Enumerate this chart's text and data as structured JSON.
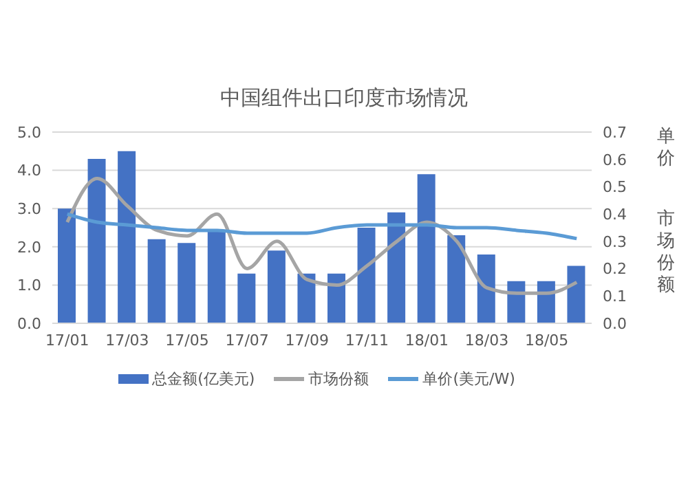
{
  "chart_data": {
    "type": "bar",
    "title": "中国组件出口印度市场情况",
    "y2label": "单价",
    "annotations": [
      "市场份额"
    ],
    "categories": [
      "17/01",
      null,
      "17/03",
      null,
      "17/05",
      null,
      "17/07",
      null,
      "17/09",
      null,
      "17/11",
      null,
      "18/01",
      null,
      "18/03",
      null,
      "18/05",
      null
    ],
    "series": [
      {
        "name": "总金额(亿美元)",
        "color": "#4472c4",
        "values": [
          3.0,
          4.3,
          4.5,
          2.2,
          2.1,
          2.4,
          1.3,
          1.9,
          1.3,
          1.3,
          2.5,
          2.9,
          3.9,
          2.3,
          1.8,
          1.1,
          1.1,
          1.5
        ]
      },
      {
        "name": "市场份额",
        "type": "line",
        "axis": "y2",
        "color": "#a5a5a5",
        "values": [
          0.37,
          0.53,
          0.43,
          0.34,
          0.32,
          0.4,
          0.2,
          0.3,
          0.16,
          0.14,
          0.21,
          0.3,
          0.37,
          0.3,
          0.13,
          0.11,
          0.11,
          0.15
        ]
      },
      {
        "name": "单价(美元/W)",
        "type": "line",
        "axis": "y2",
        "color": "#5b9bd5",
        "values": [
          0.4,
          0.37,
          0.36,
          0.35,
          0.34,
          0.34,
          0.33,
          0.33,
          0.33,
          0.35,
          0.36,
          0.36,
          0.36,
          0.35,
          0.35,
          0.34,
          0.33,
          0.31
        ]
      }
    ],
    "ylim": [
      0,
      5
    ],
    "yticks": [
      {
        "value": 0,
        "label": "0.0"
      },
      {
        "value": 1,
        "label": "1.0"
      },
      {
        "value": 2,
        "label": "2.0"
      },
      {
        "value": 3,
        "label": "3.0"
      },
      {
        "value": 4,
        "label": "4.0"
      },
      {
        "value": 5,
        "label": "5.0"
      }
    ],
    "y2lim": [
      0,
      0.7
    ],
    "y2ticks": [
      {
        "value": 0,
        "label": "0.0"
      },
      0.1,
      0.2,
      0.3,
      0.4,
      0.5,
      0.6,
      0.7
    ],
    "grid": "y",
    "legend": "bottom",
    "marker": "none",
    "line_style": "solid"
  }
}
